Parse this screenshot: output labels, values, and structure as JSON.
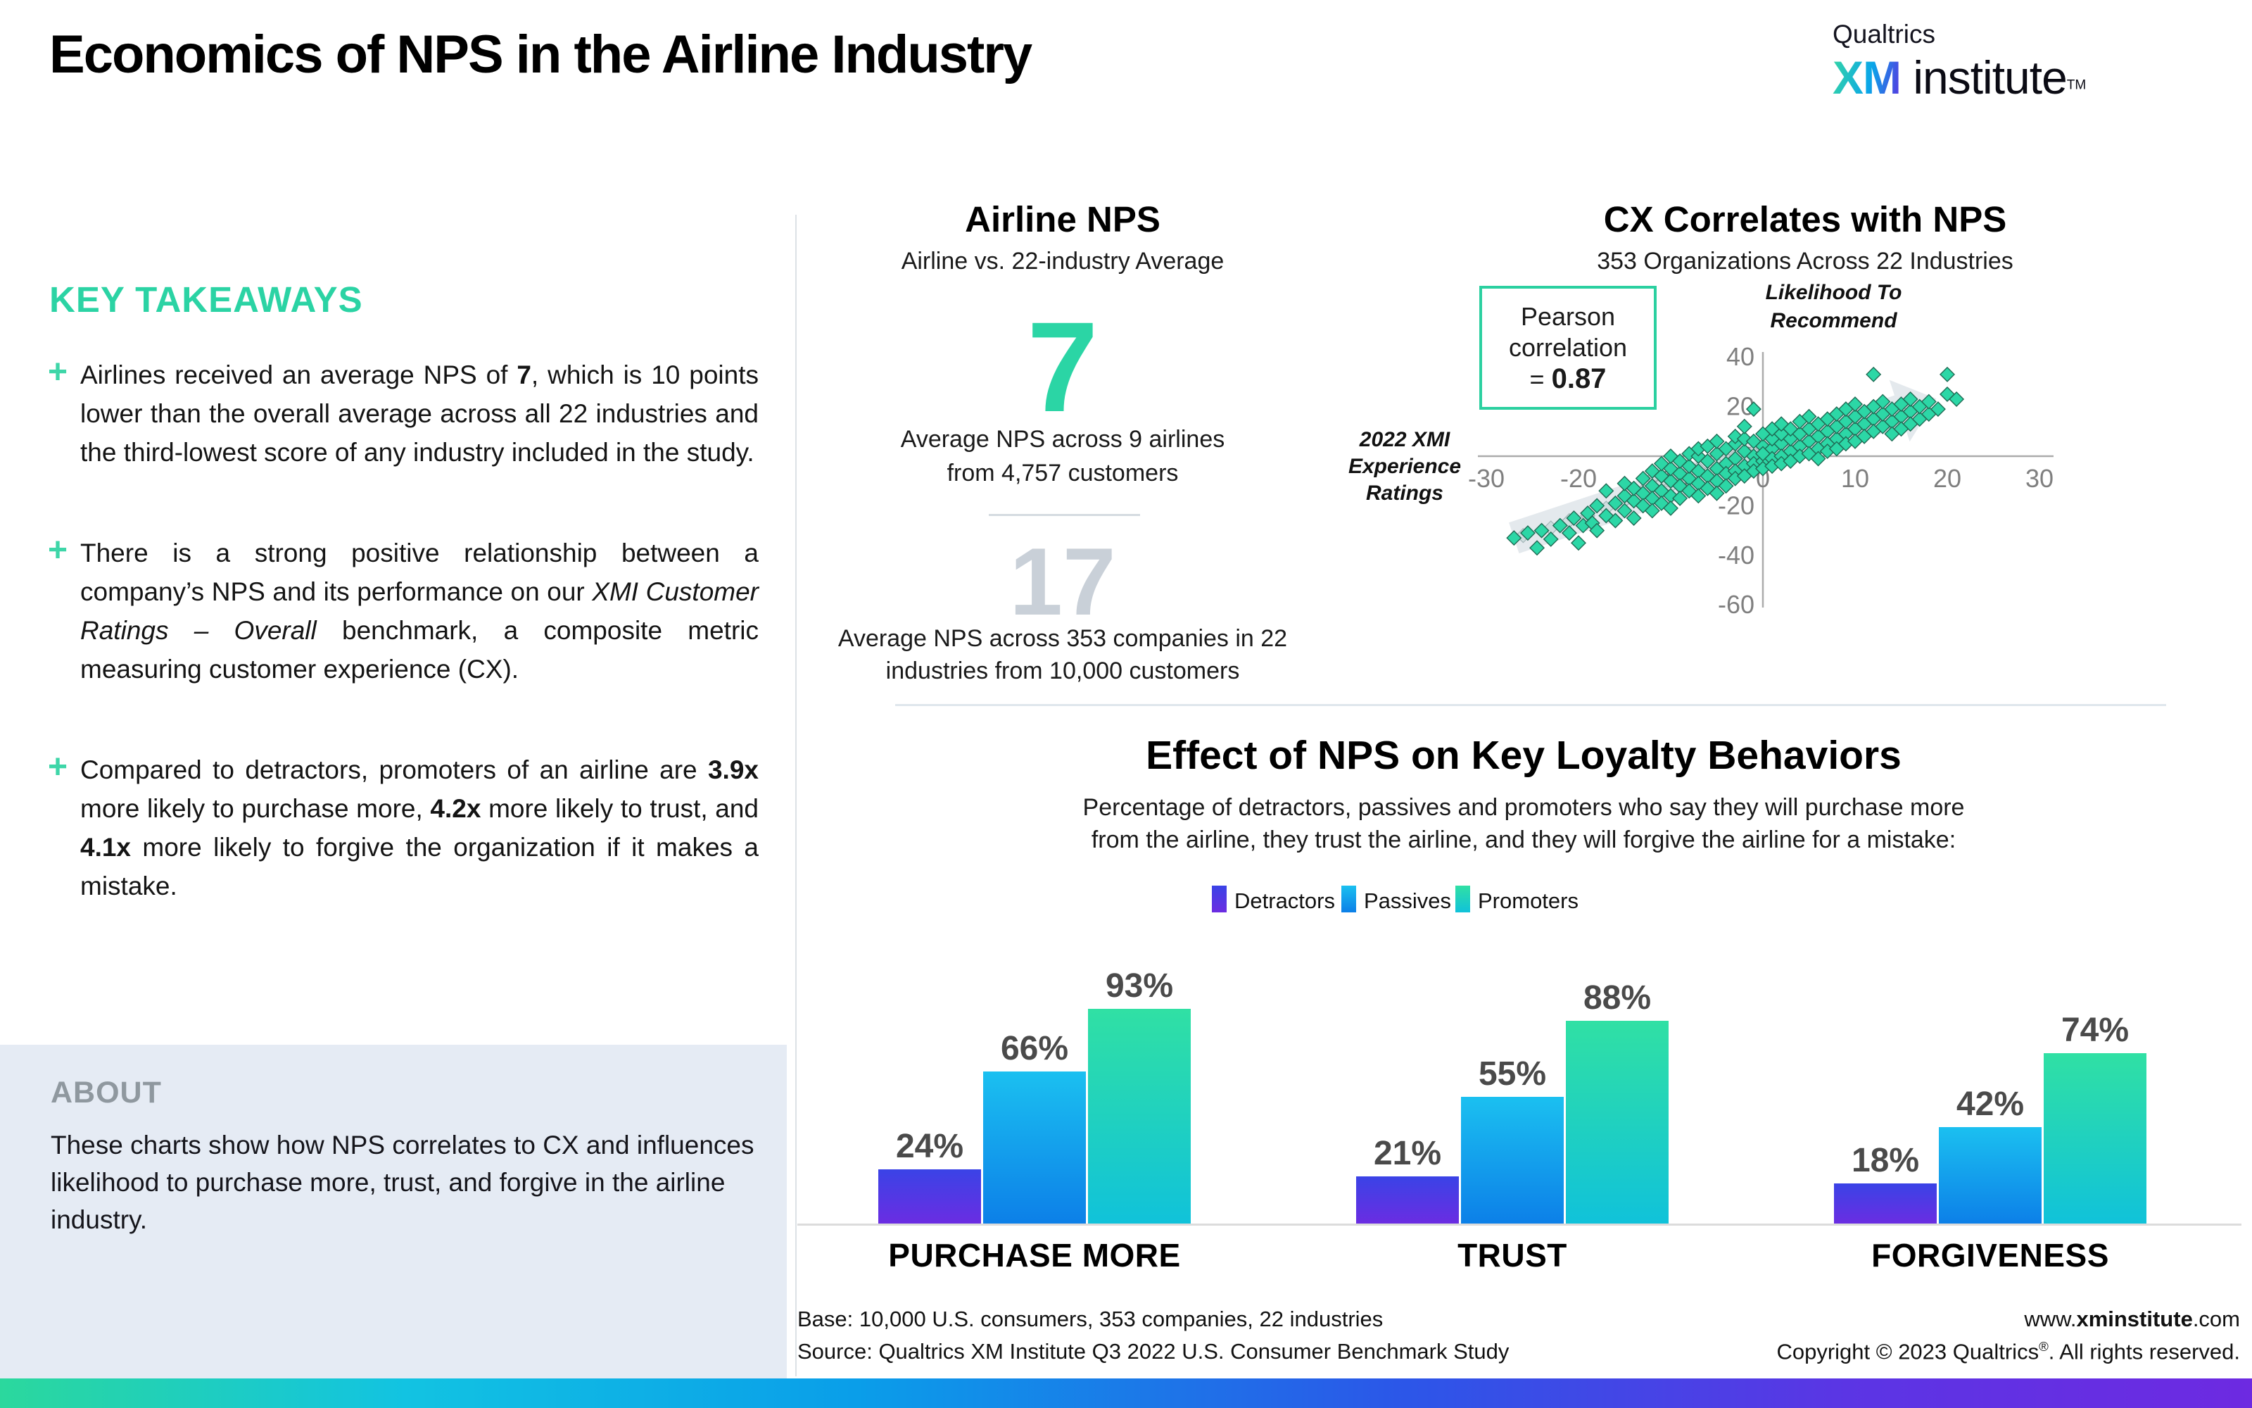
{
  "header": {
    "title": "Economics of NPS in the Airline Industry",
    "logo": {
      "line1": "Qualtrics",
      "xm": "XM",
      "rest": " institute",
      "tm": "TM"
    }
  },
  "accent_colors": {
    "teal": "#2BD3A4",
    "gray_number": "#C9D0D8",
    "label_gray": "#4A4A4A"
  },
  "key_takeaways": {
    "heading": "KEY TAKEAWAYS",
    "plus_marker": "+",
    "bullets": [
      {
        "segments": [
          {
            "text": "Airlines received an average NPS of "
          },
          {
            "text": "7",
            "bold": true
          },
          {
            "text": ", which is 10 points lower than the overall average across all 22 industries and the third-lowest score of any industry included in the study."
          }
        ]
      },
      {
        "segments": [
          {
            "text": "There is a strong positive relationship between a company’s NPS and its performance on our "
          },
          {
            "text": "XMI Customer Ratings – Overall",
            "italic": true
          },
          {
            "text": " benchmark, a composite metric measuring customer experience (CX)."
          }
        ]
      },
      {
        "segments": [
          {
            "text": "Compared to detractors, promoters of an airline are "
          },
          {
            "text": "3.9x",
            "bold": true
          },
          {
            "text": " more likely to purchase more, "
          },
          {
            "text": "4.2x",
            "bold": true
          },
          {
            "text": " more likely to trust, and "
          },
          {
            "text": "4.1x",
            "bold": true
          },
          {
            "text": " more likely to forgive the organization if it makes a mistake."
          }
        ]
      }
    ]
  },
  "about": {
    "heading": "ABOUT",
    "body": "These charts show how NPS correlates to CX and influences likelihood to purchase more, trust, and forgive in the airline industry."
  },
  "footer": {
    "base_line": "Base: 10,000 U.S. consumers, 353 companies, 22 industries",
    "source_line": "Source: Qualtrics XM Institute Q3 2022 U.S. Consumer Benchmark Study",
    "url_prefix": "www.",
    "url_bold": "xminstitute",
    "url_suffix": ".com",
    "copyright_prefix": "Copyright © 2023 Qualtrics",
    "copyright_reg": "®",
    "copyright_suffix": ". All rights reserved."
  },
  "chart_data": [
    {
      "id": "airline_nps_comparison",
      "type": "big-number-comparison",
      "title": "Airline NPS",
      "subtitle": "Airline vs. 22-industry Average",
      "values": [
        {
          "value": "7",
          "caption": "Average NPS across 9 airlines from 4,757 customers",
          "color": "#2BD5A5"
        },
        {
          "value": "17",
          "caption": "Average NPS across 353 companies in 22 industries from 10,000 customers",
          "color": "#C9D0D8"
        }
      ]
    },
    {
      "id": "cx_nps_scatter",
      "type": "scatter",
      "title": "CX Correlates with NPS",
      "subtitle": "353 Organizations Across 22 Industries",
      "pearson": {
        "line1": "Pearson",
        "line2": "correlation",
        "eq": "= ",
        "value": "0.87"
      },
      "xlabel": "2022 XMI Experience Ratings",
      "ylabel_lines": [
        "Likelihood To",
        "Recommend"
      ],
      "xlim": [
        -30,
        30
      ],
      "ylim": [
        -60,
        40
      ],
      "xticks": [
        -30,
        -20,
        -10,
        0,
        10,
        20,
        30
      ],
      "yticks": [
        40,
        20,
        0,
        -20,
        -40,
        -60
      ],
      "grid": false,
      "point_color": "#2CD7A6",
      "faded_point_color": "#CBDCDC",
      "trend": {
        "from": [
          -27,
          -33
        ],
        "to": [
          17,
          21
        ]
      },
      "points": [
        [
          -27,
          -33
        ],
        [
          -25.5,
          -31
        ],
        [
          -24.5,
          -37
        ],
        [
          -24,
          -30
        ],
        [
          -23,
          -33.5
        ],
        [
          -22,
          -28
        ],
        [
          -21,
          -31
        ],
        [
          -20.5,
          -25
        ],
        [
          -20,
          -35
        ],
        [
          -19.5,
          -28
        ],
        [
          -19,
          -23
        ],
        [
          -18.5,
          -27
        ],
        [
          -18,
          -20
        ],
        [
          -18,
          -30
        ],
        [
          -17,
          -14
        ],
        [
          -17,
          -24
        ],
        [
          -16,
          -19
        ],
        [
          -16,
          -26
        ],
        [
          -15,
          -16
        ],
        [
          -15,
          -22
        ],
        [
          -15,
          -11
        ],
        [
          -14,
          -18
        ],
        [
          -14,
          -25
        ],
        [
          -14,
          -13
        ],
        [
          -13,
          -9
        ],
        [
          -13,
          -15
        ],
        [
          -13,
          -20
        ],
        [
          -12,
          -12
        ],
        [
          -12,
          -17
        ],
        [
          -12,
          -6
        ],
        [
          -12,
          -22
        ],
        [
          -11,
          -8
        ],
        [
          -11,
          -14
        ],
        [
          -11,
          -19
        ],
        [
          -11,
          -3
        ],
        [
          -10,
          -10
        ],
        [
          -10,
          -16
        ],
        [
          -10,
          -5
        ],
        [
          -10,
          -21
        ],
        [
          -10,
          0
        ],
        [
          -9,
          -7
        ],
        [
          -9,
          -12
        ],
        [
          -9,
          -2
        ],
        [
          -9,
          -17
        ],
        [
          -8,
          -9
        ],
        [
          -8,
          -14
        ],
        [
          -8,
          -4
        ],
        [
          -8,
          1
        ],
        [
          -7,
          -6
        ],
        [
          -7,
          -11
        ],
        [
          -7,
          0
        ],
        [
          -7,
          -16
        ],
        [
          -7,
          3
        ],
        [
          -6,
          -8
        ],
        [
          -6,
          -2
        ],
        [
          -6,
          -13
        ],
        [
          -6,
          4
        ],
        [
          -5,
          -5
        ],
        [
          -5,
          -10
        ],
        [
          -5,
          1
        ],
        [
          -5,
          -15
        ],
        [
          -5,
          6
        ],
        [
          -4,
          -3
        ],
        [
          -4,
          -7
        ],
        [
          -4,
          3
        ],
        [
          -4,
          -12
        ],
        [
          -3,
          -1
        ],
        [
          -3,
          -6
        ],
        [
          -3,
          5
        ],
        [
          -3,
          -9
        ],
        [
          -3,
          8
        ],
        [
          -2,
          -4
        ],
        [
          -2,
          2
        ],
        [
          -2,
          -8
        ],
        [
          -2,
          7
        ],
        [
          -2,
          12
        ],
        [
          -1,
          0
        ],
        [
          -1,
          -3
        ],
        [
          -1,
          6
        ],
        [
          -1,
          -6
        ],
        [
          -1,
          19
        ],
        [
          0,
          -2
        ],
        [
          0,
          4
        ],
        [
          0,
          -5
        ],
        [
          0,
          9
        ],
        [
          0,
          1
        ],
        [
          1,
          3
        ],
        [
          1,
          -1
        ],
        [
          1,
          7
        ],
        [
          1,
          -4
        ],
        [
          1,
          11
        ],
        [
          2,
          5
        ],
        [
          2,
          0
        ],
        [
          2,
          -3
        ],
        [
          2,
          9
        ],
        [
          2,
          13
        ],
        [
          3,
          2
        ],
        [
          3,
          7
        ],
        [
          3,
          -2
        ],
        [
          3,
          11
        ],
        [
          4,
          4
        ],
        [
          4,
          9
        ],
        [
          4,
          0
        ],
        [
          4,
          14
        ],
        [
          5,
          6
        ],
        [
          5,
          1
        ],
        [
          5,
          11
        ],
        [
          5,
          16
        ],
        [
          6,
          8
        ],
        [
          6,
          3
        ],
        [
          6,
          13
        ],
        [
          6,
          -1
        ],
        [
          7,
          10
        ],
        [
          7,
          5
        ],
        [
          7,
          15
        ],
        [
          7,
          2
        ],
        [
          8,
          7
        ],
        [
          8,
          12
        ],
        [
          8,
          3
        ],
        [
          8,
          17
        ],
        [
          9,
          9
        ],
        [
          9,
          14
        ],
        [
          9,
          5
        ],
        [
          9,
          19
        ],
        [
          10,
          11
        ],
        [
          10,
          6
        ],
        [
          10,
          16
        ],
        [
          10,
          21
        ],
        [
          11,
          13
        ],
        [
          11,
          8
        ],
        [
          11,
          18
        ],
        [
          12,
          15
        ],
        [
          12,
          10
        ],
        [
          12,
          20
        ],
        [
          12,
          33
        ],
        [
          13,
          12
        ],
        [
          13,
          17
        ],
        [
          13,
          22
        ],
        [
          14,
          14
        ],
        [
          14,
          19
        ],
        [
          14,
          9
        ],
        [
          15,
          16
        ],
        [
          15,
          21
        ],
        [
          15,
          11
        ],
        [
          16,
          18
        ],
        [
          16,
          13
        ],
        [
          16,
          23
        ],
        [
          17,
          15
        ],
        [
          17,
          20
        ],
        [
          18,
          17
        ],
        [
          18,
          22
        ],
        [
          19,
          19
        ],
        [
          20,
          33
        ],
        [
          20,
          25
        ],
        [
          21,
          23
        ]
      ],
      "faded_points": [
        [
          -26,
          -32
        ],
        [
          -23,
          -29
        ],
        [
          -21,
          -26
        ],
        [
          -19,
          -24
        ],
        [
          -17,
          -21
        ],
        [
          -15,
          -18
        ],
        [
          -13,
          -14
        ],
        [
          -11,
          -11
        ],
        [
          -9,
          -8
        ],
        [
          -7,
          -5
        ],
        [
          -5,
          -3
        ],
        [
          -3,
          0
        ],
        [
          -1,
          2
        ],
        [
          1,
          4
        ],
        [
          3,
          6
        ],
        [
          5,
          8
        ],
        [
          7,
          10
        ],
        [
          9,
          12
        ],
        [
          11,
          14
        ],
        [
          13,
          16
        ],
        [
          15,
          18
        ],
        [
          -12,
          -9
        ],
        [
          -8,
          -6
        ],
        [
          -4,
          -1
        ],
        [
          0,
          3
        ],
        [
          4,
          7
        ],
        [
          8,
          11
        ],
        [
          12,
          15
        ],
        [
          2,
          1
        ],
        [
          6,
          5
        ],
        [
          10,
          9
        ],
        [
          14,
          13
        ],
        [
          -2,
          -2
        ],
        [
          -6,
          -7
        ],
        [
          -10,
          -12
        ]
      ]
    },
    {
      "id": "loyalty_behavior_bars",
      "type": "bar",
      "title": "Effect of NPS on Key Loyalty Behaviors",
      "subtitle_line1": "Percentage of detractors, passives and promoters who say they will purchase more",
      "subtitle_line2": "from the airline, they trust the airline, and they will forgive the airline for a mistake:",
      "categories": [
        "PURCHASE MORE",
        "TRUST",
        "FORGIVENESS"
      ],
      "series": [
        {
          "name": "Detractors",
          "values": [
            24,
            21,
            18
          ],
          "gradient": [
            "#3A43E6",
            "#6C2CE2"
          ]
        },
        {
          "name": "Passives",
          "values": [
            66,
            55,
            42
          ],
          "gradient": [
            "#1BC0F0",
            "#0C7FE8"
          ]
        },
        {
          "name": "Promoters",
          "values": [
            93,
            88,
            74
          ],
          "gradient": [
            "#30E0A4",
            "#10C2DA"
          ]
        }
      ],
      "value_suffix": "%",
      "ylim": [
        0,
        100
      ],
      "legend_position": "top-center"
    }
  ]
}
